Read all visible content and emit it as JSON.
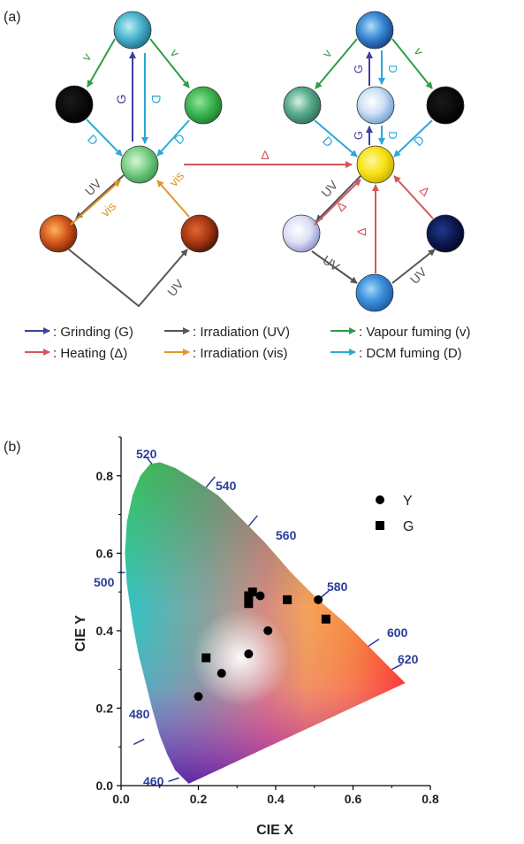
{
  "panel_a": {
    "label": "(a)",
    "arrow_labels": {
      "v": "v",
      "G": "G",
      "D": "D",
      "UV": "UV",
      "vis": "vis",
      "delta": "Δ"
    },
    "legend": [
      {
        "label": ": Grinding (G)",
        "color": "#3f3f9f"
      },
      {
        "label": ": Irradiation (UV)",
        "color": "#555555"
      },
      {
        "label": ": Vapour fuming (v)",
        "color": "#2e9e48"
      },
      {
        "label": ": Heating (Δ)",
        "color": "#d0585c"
      },
      {
        "label": ": Irradiation (vis)",
        "color": "#e0962a"
      },
      {
        "label": ": DCM fuming (D)",
        "color": "#2aa8d8"
      }
    ]
  },
  "panel_b": {
    "label": "(b)",
    "wavelength_labels": [
      "520",
      "540",
      "560",
      "580",
      "600",
      "620",
      "500",
      "480",
      "460"
    ],
    "legend": [
      {
        "label": "Y",
        "marker": "circle"
      },
      {
        "label": "G",
        "marker": "square"
      }
    ]
  },
  "chart_data": {
    "type": "scatter",
    "title": "",
    "xlabel": "CIE X",
    "ylabel": "CIE Y",
    "xlim": [
      0.0,
      0.8
    ],
    "ylim": [
      0.0,
      0.9
    ],
    "xticks": [
      "0.0",
      "0.2",
      "0.4",
      "0.6",
      "0.8"
    ],
    "yticks": [
      "0.0",
      "0.2",
      "0.4",
      "0.6",
      "0.8"
    ],
    "series": [
      {
        "name": "Y",
        "marker": "circle",
        "points": [
          [
            0.2,
            0.23
          ],
          [
            0.26,
            0.29
          ],
          [
            0.33,
            0.34
          ],
          [
            0.38,
            0.4
          ],
          [
            0.36,
            0.49
          ],
          [
            0.51,
            0.48
          ]
        ]
      },
      {
        "name": "G",
        "marker": "square",
        "points": [
          [
            0.22,
            0.33
          ],
          [
            0.33,
            0.47
          ],
          [
            0.33,
            0.49
          ],
          [
            0.34,
            0.5
          ],
          [
            0.43,
            0.48
          ],
          [
            0.53,
            0.43
          ]
        ]
      }
    ]
  }
}
